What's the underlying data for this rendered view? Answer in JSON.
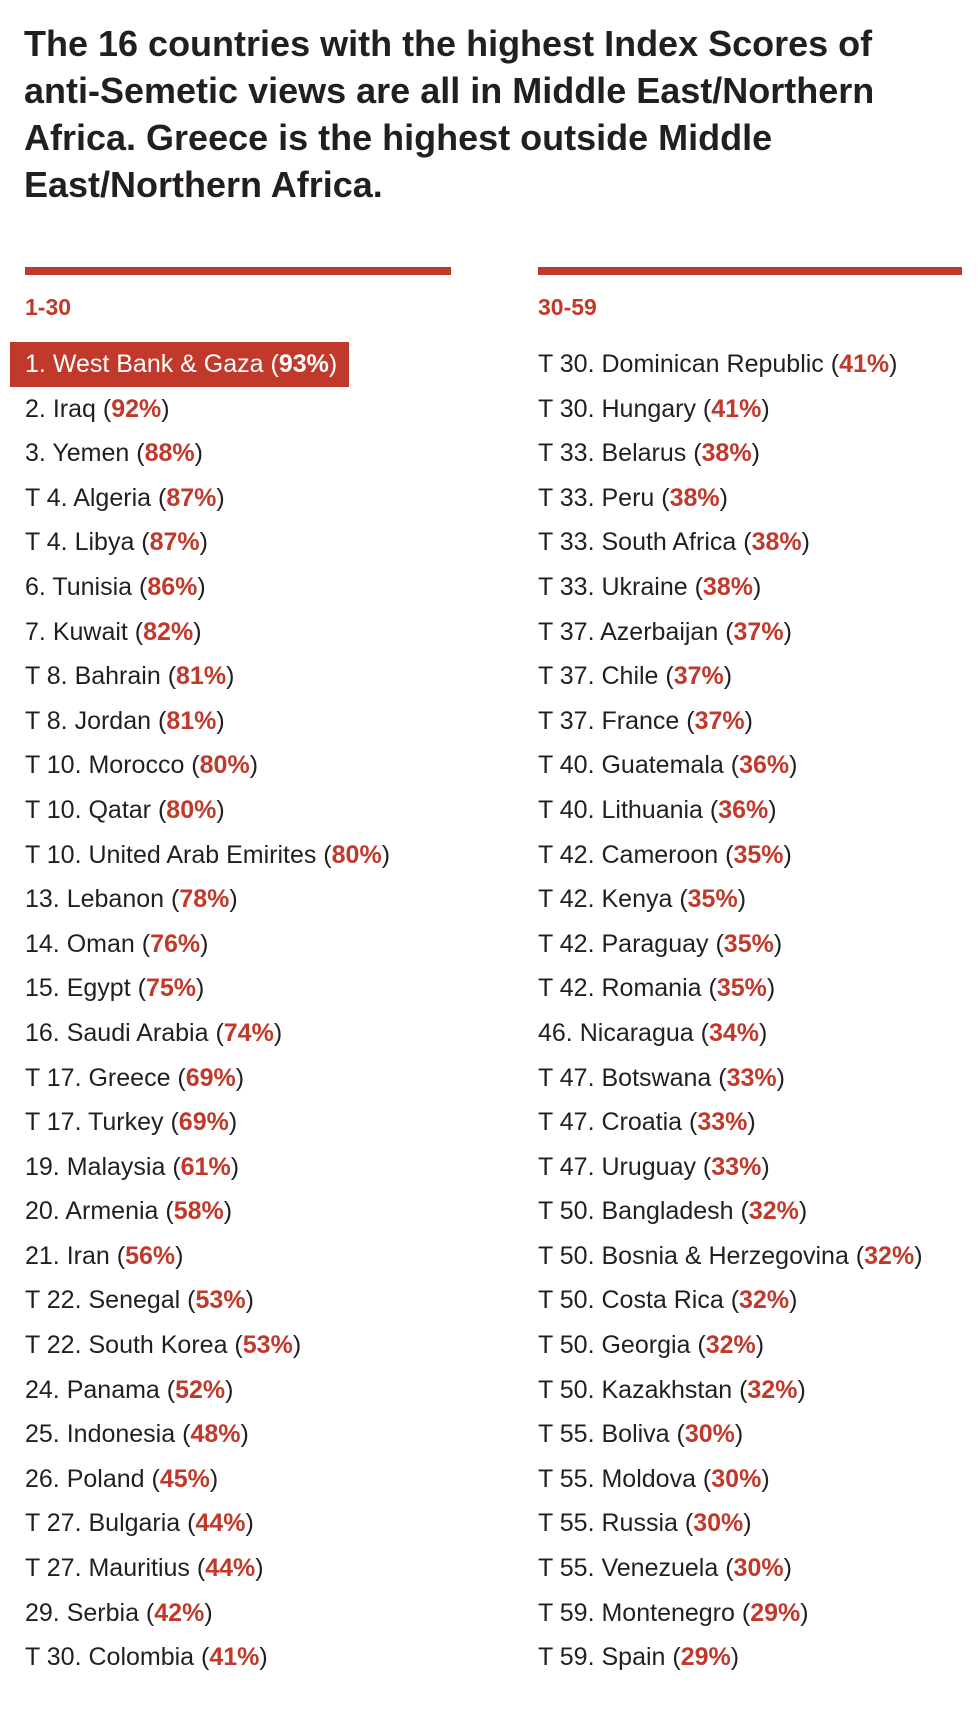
{
  "headline": "The 16 countries with the highest Index Scores of anti-Semetic views are all in Middle East/Northern Africa. Greece is the highest outside Middle East/Northern Africa.",
  "columns": [
    {
      "title": "1-30",
      "items": [
        {
          "rank": "1.",
          "country": "West Bank & Gaza",
          "pct": "93%",
          "highlighted": true
        },
        {
          "rank": "2.",
          "country": "Iraq",
          "pct": "92%"
        },
        {
          "rank": "3.",
          "country": "Yemen",
          "pct": "88%"
        },
        {
          "rank": "T 4.",
          "country": "Algeria",
          "pct": "87%"
        },
        {
          "rank": "T 4.",
          "country": "Libya",
          "pct": "87%"
        },
        {
          "rank": "6.",
          "country": "Tunisia",
          "pct": "86%"
        },
        {
          "rank": "7.",
          "country": "Kuwait",
          "pct": "82%"
        },
        {
          "rank": "T 8.",
          "country": "Bahrain",
          "pct": "81%"
        },
        {
          "rank": "T 8.",
          "country": "Jordan",
          "pct": "81%"
        },
        {
          "rank": "T 10.",
          "country": "Morocco",
          "pct": "80%"
        },
        {
          "rank": "T 10.",
          "country": "Qatar",
          "pct": "80%"
        },
        {
          "rank": "T 10.",
          "country": "United Arab Emirites",
          "pct": "80%"
        },
        {
          "rank": "13.",
          "country": "Lebanon",
          "pct": "78%"
        },
        {
          "rank": "14.",
          "country": "Oman",
          "pct": "76%"
        },
        {
          "rank": "15.",
          "country": "Egypt",
          "pct": "75%"
        },
        {
          "rank": "16.",
          "country": "Saudi Arabia",
          "pct": "74%"
        },
        {
          "rank": "T 17.",
          "country": "Greece",
          "pct": "69%"
        },
        {
          "rank": "T 17.",
          "country": "Turkey",
          "pct": "69%"
        },
        {
          "rank": "19.",
          "country": "Malaysia",
          "pct": "61%"
        },
        {
          "rank": "20.",
          "country": "Armenia",
          "pct": "58%"
        },
        {
          "rank": "21.",
          "country": "Iran",
          "pct": "56%"
        },
        {
          "rank": "T 22.",
          "country": "Senegal",
          "pct": "53%"
        },
        {
          "rank": "T 22.",
          "country": "South Korea",
          "pct": "53%"
        },
        {
          "rank": "24.",
          "country": "Panama",
          "pct": "52%"
        },
        {
          "rank": "25.",
          "country": "Indonesia",
          "pct": "48%"
        },
        {
          "rank": "26.",
          "country": "Poland",
          "pct": "45%"
        },
        {
          "rank": "T 27.",
          "country": "Bulgaria",
          "pct": "44%"
        },
        {
          "rank": "T 27.",
          "country": "Mauritius",
          "pct": "44%"
        },
        {
          "rank": "29.",
          "country": "Serbia",
          "pct": "42%"
        },
        {
          "rank": "T 30.",
          "country": "Colombia",
          "pct": "41%"
        }
      ]
    },
    {
      "title": "30-59",
      "items": [
        {
          "rank": "T 30.",
          "country": "Dominican Republic",
          "pct": "41%"
        },
        {
          "rank": "T 30.",
          "country": "Hungary",
          "pct": "41%"
        },
        {
          "rank": "T 33.",
          "country": "Belarus",
          "pct": "38%"
        },
        {
          "rank": "T 33.",
          "country": "Peru",
          "pct": "38%"
        },
        {
          "rank": "T 33.",
          "country": "South Africa",
          "pct": "38%"
        },
        {
          "rank": "T 33.",
          "country": "Ukraine",
          "pct": "38%"
        },
        {
          "rank": "T 37.",
          "country": "Azerbaijan",
          "pct": "37%"
        },
        {
          "rank": "T 37.",
          "country": "Chile",
          "pct": "37%"
        },
        {
          "rank": "T 37.",
          "country": "France",
          "pct": "37%"
        },
        {
          "rank": "T 40.",
          "country": "Guatemala",
          "pct": "36%"
        },
        {
          "rank": "T 40.",
          "country": "Lithuania",
          "pct": "36%"
        },
        {
          "rank": "T 42.",
          "country": "Cameroon",
          "pct": "35%"
        },
        {
          "rank": "T 42.",
          "country": "Kenya",
          "pct": "35%"
        },
        {
          "rank": "T 42.",
          "country": "Paraguay",
          "pct": "35%"
        },
        {
          "rank": "T 42.",
          "country": "Romania",
          "pct": "35%"
        },
        {
          "rank": "46.",
          "country": "Nicaragua",
          "pct": "34%"
        },
        {
          "rank": "T 47.",
          "country": "Botswana",
          "pct": "33%"
        },
        {
          "rank": "T 47.",
          "country": "Croatia",
          "pct": "33%"
        },
        {
          "rank": "T 47.",
          "country": "Uruguay",
          "pct": "33%"
        },
        {
          "rank": "T 50.",
          "country": "Bangladesh",
          "pct": "32%"
        },
        {
          "rank": "T 50.",
          "country": "Bosnia & Herzegovina",
          "pct": "32%"
        },
        {
          "rank": "T 50.",
          "country": "Costa Rica",
          "pct": "32%"
        },
        {
          "rank": "T 50.",
          "country": "Georgia",
          "pct": "32%"
        },
        {
          "rank": "T 50.",
          "country": "Kazakhstan",
          "pct": "32%"
        },
        {
          "rank": "T 55.",
          "country": "Boliva",
          "pct": "30%"
        },
        {
          "rank": "T 55.",
          "country": "Moldova",
          "pct": "30%"
        },
        {
          "rank": "T 55.",
          "country": "Russia",
          "pct": "30%"
        },
        {
          "rank": "T 55.",
          "country": "Venezuela",
          "pct": "30%"
        },
        {
          "rank": "T 59.",
          "country": "Montenegro",
          "pct": "29%"
        },
        {
          "rank": "T 59.",
          "country": "Spain",
          "pct": "29%"
        }
      ]
    }
  ],
  "colors": {
    "accent": "#c0392b",
    "text": "#231f20",
    "background": "#ffffff"
  }
}
